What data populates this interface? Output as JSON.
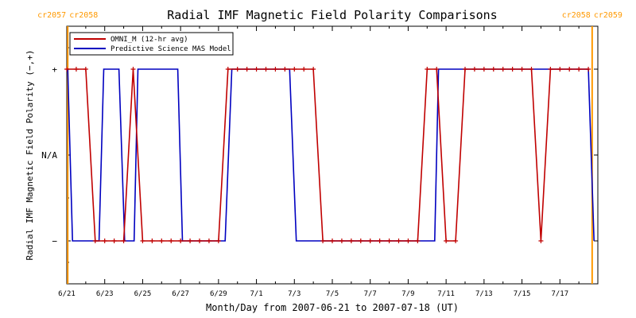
{
  "chart_data": {
    "type": "line",
    "title": "Radial IMF Magnetic Field Polarity Comparisons",
    "xlabel": "Month/Day from 2007-06-21 to 2007-07-18 (UT)",
    "ylabel": "Radial IMF Magnetic Field Polarity (−,+)",
    "x_ticks": [
      "6/21",
      "6/23",
      "6/25",
      "6/27",
      "6/29",
      "7/1",
      "7/3",
      "7/5",
      "7/7",
      "7/9",
      "7/11",
      "7/13",
      "7/15",
      "7/17"
    ],
    "x_range_days": [
      0,
      28
    ],
    "y_categories": [
      {
        "label": "+",
        "value": 1
      },
      {
        "label": "N/A",
        "value": 0
      },
      {
        "label": "−",
        "value": -1
      }
    ],
    "ylim": [
      -1.5,
      1.5
    ],
    "carrington_rotations": [
      {
        "left": "cr2057",
        "right": "cr2058",
        "day": 0.05
      },
      {
        "left": "cr2058",
        "right": "cr2059",
        "day": 27.7
      }
    ],
    "legend": {
      "placement": "top-left"
    },
    "series": [
      {
        "name": "OMNI_M (12-hr avg)",
        "color": "#c00000",
        "markers": true,
        "points": [
          [
            0.0,
            1
          ],
          [
            0.5,
            1
          ],
          [
            1.0,
            1
          ],
          [
            1.5,
            -1
          ],
          [
            2.0,
            -1
          ],
          [
            2.5,
            -1
          ],
          [
            3.0,
            -1
          ],
          [
            3.5,
            1
          ],
          [
            4.0,
            -1
          ],
          [
            4.5,
            -1
          ],
          [
            5.0,
            -1
          ],
          [
            5.5,
            -1
          ],
          [
            6.0,
            -1
          ],
          [
            6.5,
            -1
          ],
          [
            7.0,
            -1
          ],
          [
            7.5,
            -1
          ],
          [
            8.0,
            -1
          ],
          [
            8.5,
            1
          ],
          [
            9.0,
            1
          ],
          [
            9.5,
            1
          ],
          [
            10.0,
            1
          ],
          [
            10.5,
            1
          ],
          [
            11.0,
            1
          ],
          [
            11.5,
            1
          ],
          [
            12.0,
            1
          ],
          [
            12.5,
            1
          ],
          [
            13.0,
            1
          ],
          [
            13.5,
            -1
          ],
          [
            14.0,
            -1
          ],
          [
            14.5,
            -1
          ],
          [
            15.0,
            -1
          ],
          [
            15.5,
            -1
          ],
          [
            16.0,
            -1
          ],
          [
            16.5,
            -1
          ],
          [
            17.0,
            -1
          ],
          [
            17.5,
            -1
          ],
          [
            18.0,
            -1
          ],
          [
            18.5,
            -1
          ],
          [
            19.0,
            1
          ],
          [
            19.5,
            1
          ],
          [
            20.0,
            -1
          ],
          [
            20.5,
            -1
          ],
          [
            21.0,
            1
          ],
          [
            21.5,
            1
          ],
          [
            22.0,
            1
          ],
          [
            22.5,
            1
          ],
          [
            23.0,
            1
          ],
          [
            23.5,
            1
          ],
          [
            24.0,
            1
          ],
          [
            24.5,
            1
          ],
          [
            25.0,
            -1
          ],
          [
            25.5,
            1
          ],
          [
            26.0,
            1
          ],
          [
            26.5,
            1
          ],
          [
            27.0,
            1
          ],
          [
            27.5,
            1
          ]
        ]
      },
      {
        "name": "Predictive Science MAS Model",
        "color": "#0000c0",
        "markers": false,
        "points": [
          [
            0.0,
            1
          ],
          [
            0.05,
            1
          ],
          [
            0.3,
            -1
          ],
          [
            1.7,
            -1
          ],
          [
            1.95,
            1
          ],
          [
            2.75,
            1
          ],
          [
            3.05,
            -1
          ],
          [
            3.55,
            -1
          ],
          [
            3.75,
            1
          ],
          [
            5.85,
            1
          ],
          [
            6.1,
            -1
          ],
          [
            8.35,
            -1
          ],
          [
            8.7,
            1
          ],
          [
            11.75,
            1
          ],
          [
            12.1,
            -1
          ],
          [
            19.4,
            -1
          ],
          [
            19.6,
            1
          ],
          [
            27.5,
            1
          ],
          [
            27.8,
            -1
          ]
        ]
      }
    ]
  }
}
